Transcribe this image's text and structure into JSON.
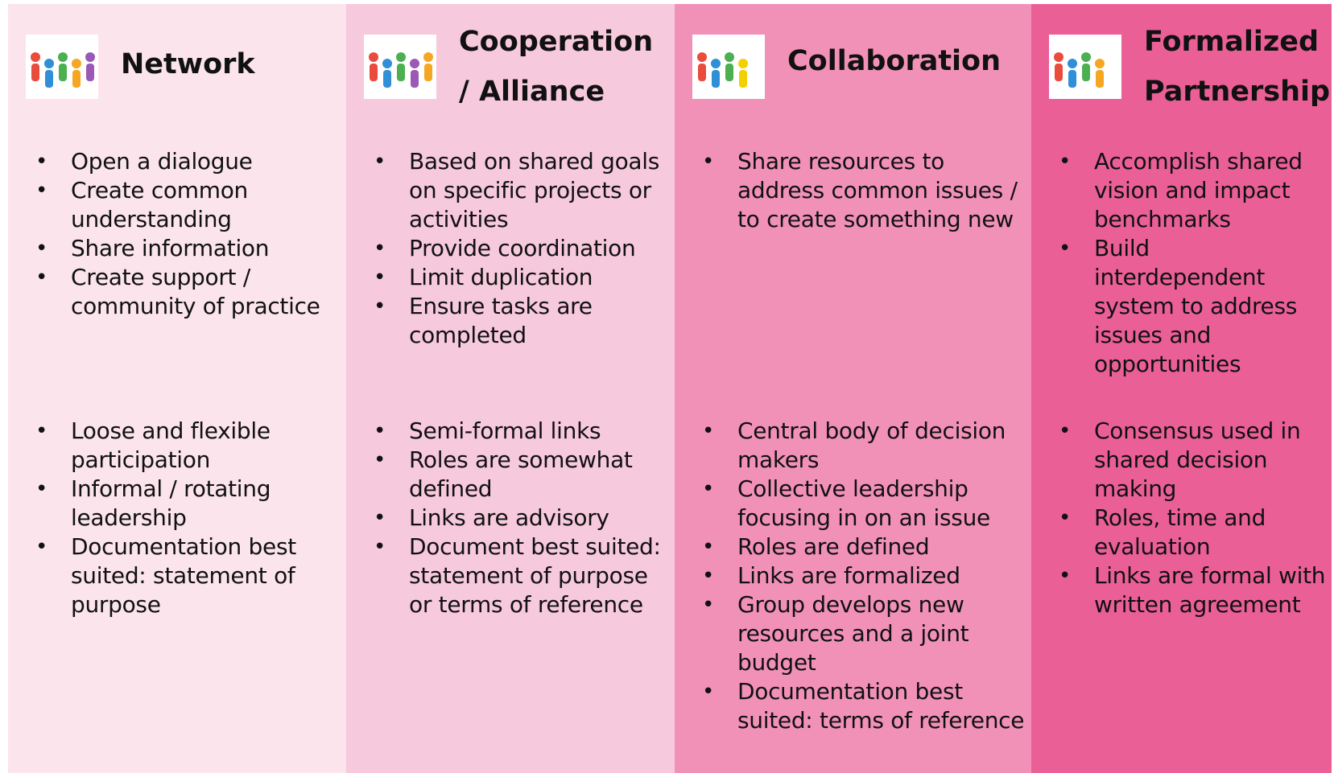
{
  "columns": [
    {
      "title": "Network",
      "list1": [
        "Open a dialogue",
        "Create common understanding",
        "Share information",
        "Create support / community of practice"
      ],
      "list2": [
        "Loose and flexible participation",
        "Informal / rotating leadership",
        "Documentation best suited: statement of purpose"
      ]
    },
    {
      "title": "Cooperation / Alliance",
      "list1": [
        "Based on shared goals on specific projects or activities",
        "Provide coordination",
        "Limit duplication",
        "Ensure tasks are completed"
      ],
      "list2": [
        "Semi-formal links",
        "Roles are somewhat defined",
        "Links are advisory",
        "Document best suited:  statement of purpose or terms of reference"
      ]
    },
    {
      "title": "Collaboration",
      "list1": [
        "Share resources to address common issues / to create something new"
      ],
      "list2": [
        "Central body of decision makers",
        "Collective leadership focusing in on an issue",
        "Roles are defined",
        "Links are formalized",
        "Group develops new resources and a joint budget",
        "Documentation best suited: terms of reference"
      ]
    },
    {
      "title": "Formalized Partnership",
      "list1": [
        "Accomplish shared vision and impact benchmarks",
        "Build interdependent system to address issues and opportunities"
      ],
      "list2": [
        "Consensus used in shared decision making",
        "Roles, time and evaluation",
        "Links are formal with written agreement"
      ]
    }
  ]
}
